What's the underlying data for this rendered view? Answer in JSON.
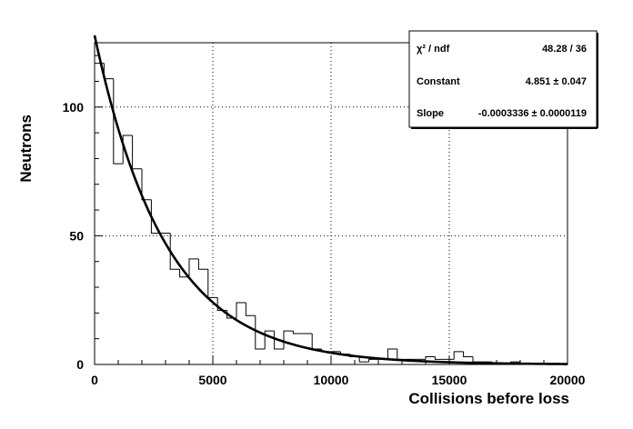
{
  "chart_data": {
    "type": "histogram",
    "xlabel": "Collisions before loss",
    "ylabel": "Neutrons",
    "xlim": [
      0,
      20000
    ],
    "ylim": [
      0,
      125
    ],
    "x_ticks": [
      0,
      5000,
      10000,
      15000,
      20000
    ],
    "y_ticks": [
      0,
      50,
      100
    ],
    "grid": true,
    "bin_width": 400,
    "histogram": {
      "bin_edges_start": 0,
      "values": [
        117,
        111,
        78,
        89,
        76,
        64,
        51,
        51,
        37,
        34,
        41,
        37,
        26,
        21,
        18,
        24,
        19,
        6,
        13,
        6,
        13,
        12,
        12,
        6,
        5,
        5,
        4,
        3,
        1,
        2,
        2,
        6,
        2,
        2,
        2,
        3,
        2,
        2,
        5,
        3,
        1,
        1,
        0,
        0,
        1,
        0,
        0,
        0,
        0,
        0
      ]
    },
    "fit": {
      "function": "exp(Constant + Slope*x)",
      "constant": 4.851,
      "slope": -0.0003336
    },
    "stats_box": {
      "position": "top-right",
      "rows": [
        {
          "label": "χ² / ndf",
          "value": "48.28 / 36"
        },
        {
          "label": "Constant",
          "value": "4.851 ± 0.047"
        },
        {
          "label": "Slope",
          "value": "-0.0003336 ± 0.0000119"
        }
      ]
    }
  }
}
